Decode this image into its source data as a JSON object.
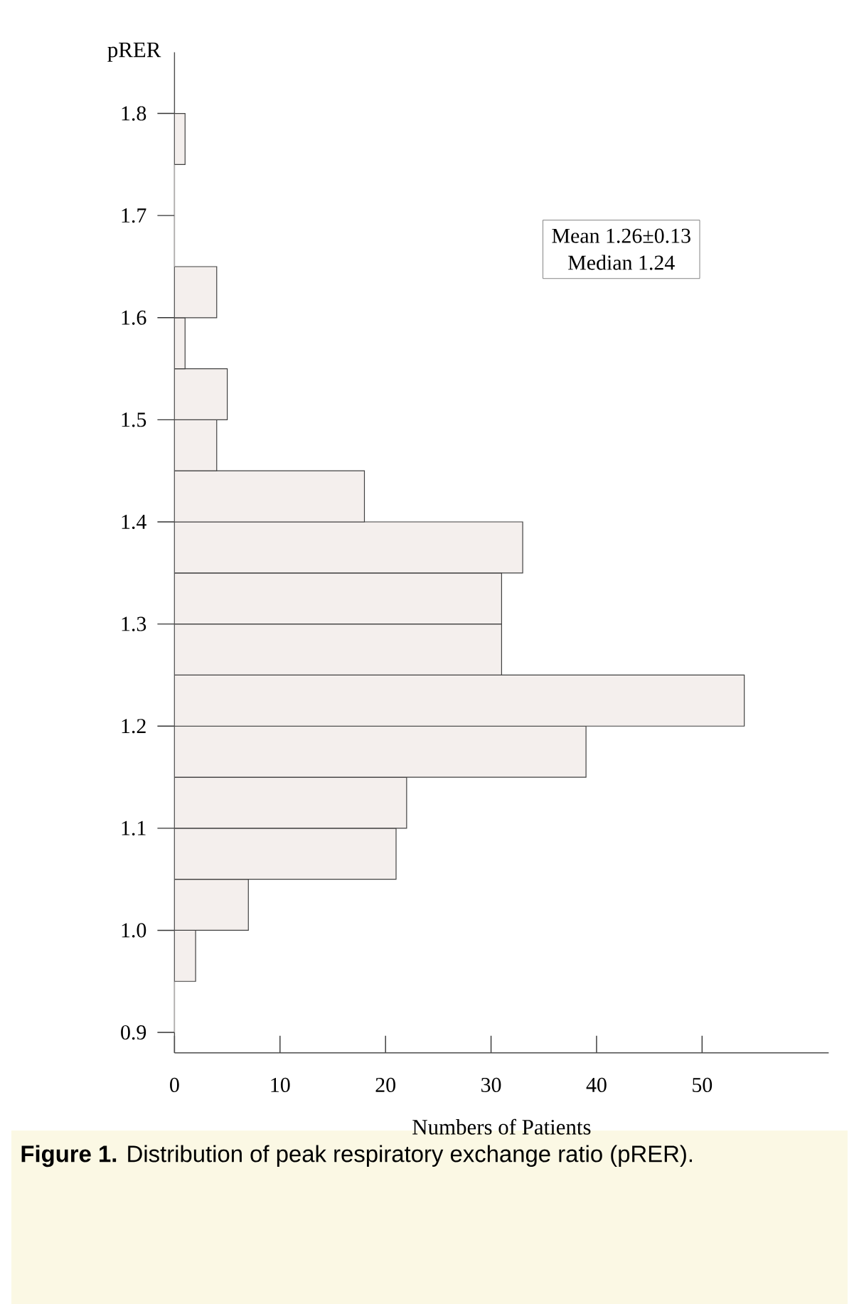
{
  "chart_data": {
    "type": "histogram",
    "orientation": "horizontal",
    "bins": [
      0.9,
      0.95,
      1.0,
      1.05,
      1.1,
      1.15,
      1.2,
      1.25,
      1.3,
      1.35,
      1.4,
      1.45,
      1.5,
      1.55,
      1.6,
      1.65,
      1.7,
      1.75,
      1.8
    ],
    "values": [
      0,
      2,
      7,
      21,
      22,
      39,
      54,
      31,
      31,
      33,
      18,
      4,
      5,
      1,
      4,
      0,
      0,
      1
    ],
    "color": "#f4efed",
    "xlim": [
      0,
      62
    ],
    "ylim": [
      0.88,
      1.86
    ],
    "xticks": [
      0,
      10,
      20,
      30,
      40,
      50
    ],
    "yticks": [
      0.9,
      {
        "value": 1.0,
        "label": "1.0"
      },
      1.1,
      1.2,
      1.3,
      1.4,
      1.5,
      1.6,
      1.7,
      1.8
    ],
    "xlabel": "Numbers of Patients",
    "ylabel": "pRER",
    "annotations": [
      "Mean 1.26±0.13",
      "Median 1.24",
      "**Figure 1.** Distribution of peak respiratory exchange ratio (pRER)."
    ]
  }
}
